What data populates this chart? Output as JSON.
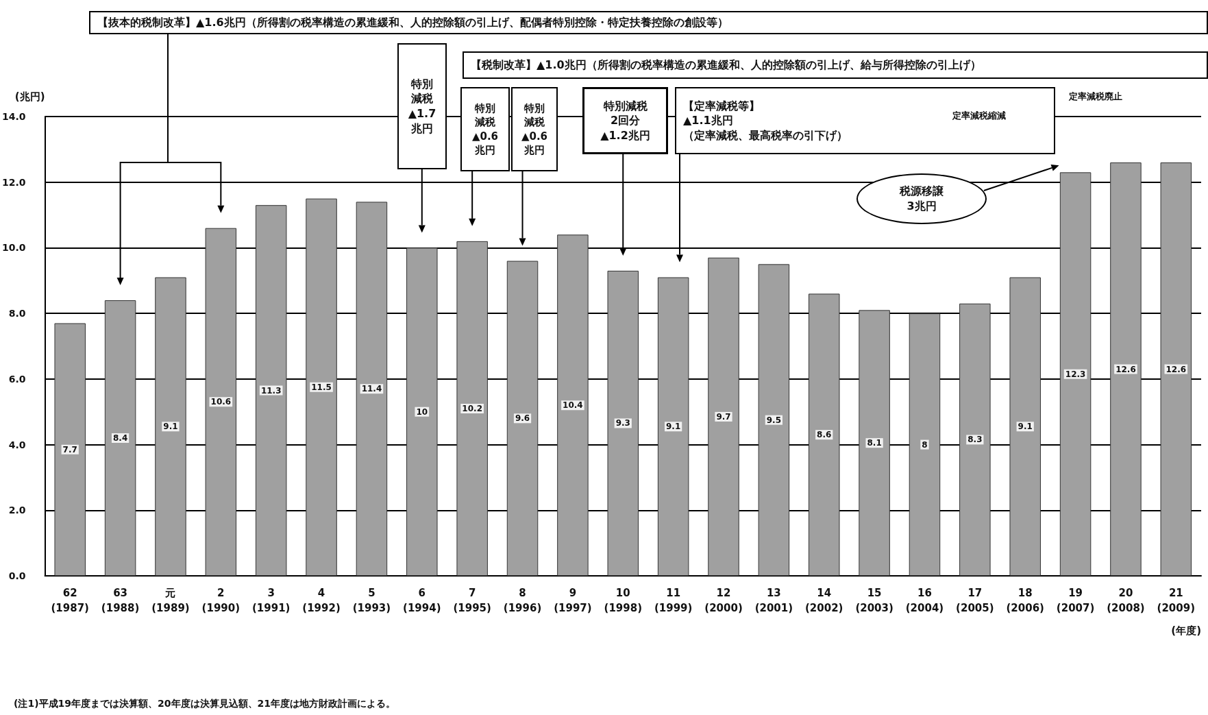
{
  "chart_data": {
    "type": "bar",
    "ylabel": "(兆円)",
    "xlabel": "(年度)",
    "categories": [
      "62\n(1987)",
      "63\n(1988)",
      "元\n(1989)",
      "2\n(1990)",
      "3\n(1991)",
      "4\n(1992)",
      "5\n(1993)",
      "6\n(1994)",
      "7\n(1995)",
      "8\n(1996)",
      "9\n(1997)",
      "10\n(1998)",
      "11\n(1999)",
      "12\n(2000)",
      "13\n(2001)",
      "14\n(2002)",
      "15\n(2003)",
      "16\n(2004)",
      "17\n(2005)",
      "18\n(2006)",
      "19\n(2007)",
      "20\n(2008)",
      "21\n(2009)"
    ],
    "values": [
      7.7,
      8.4,
      9.1,
      10.6,
      11.3,
      11.5,
      11.4,
      10.0,
      10.2,
      9.6,
      10.4,
      9.3,
      9.1,
      9.7,
      9.5,
      8.6,
      8.1,
      8.0,
      8.3,
      9.1,
      12.3,
      12.6,
      12.6
    ],
    "color": "#a0a0a0",
    "data_labels": true,
    "ylim": [
      0,
      14
    ],
    "yticks": [
      {
        "value": 0,
        "label": "0.0"
      },
      {
        "value": 2,
        "label": "2.0"
      },
      {
        "value": 4,
        "label": "4.0"
      },
      {
        "value": 6,
        "label": "6.0"
      },
      {
        "value": 8,
        "label": "8.0"
      },
      {
        "value": 10,
        "label": "10.0"
      },
      {
        "value": 12,
        "label": "12.0"
      },
      {
        "value": 14,
        "label": "14.0"
      }
    ],
    "grid": "y",
    "annotations": [
      "【抜本的税制改革】▲1.6兆円（所得割の税率構造の累進緩和、人的控除額の引上げ、配偶者特別控除・特定扶養控除の創設等）",
      "特別減税▲1.7兆円",
      "特別減税▲0.6兆円",
      "特別減税▲0.6兆円",
      "【税制改革】▲1.0兆円（所得割の税率構造の累進緩和、人的控除額の引上げ、給与所得控除の引上げ）",
      "特別減税2回分▲1.2兆円",
      "【定率減税等】▲1.1兆円（定率減税、最高税率の引下げ）",
      "定率減税縮減",
      "定率減税廃止",
      "税源移譲3兆円",
      "(注1)平成19年度までは決算額、20年度は決算見込額、21年度は地方財政計画による。"
    ]
  }
}
